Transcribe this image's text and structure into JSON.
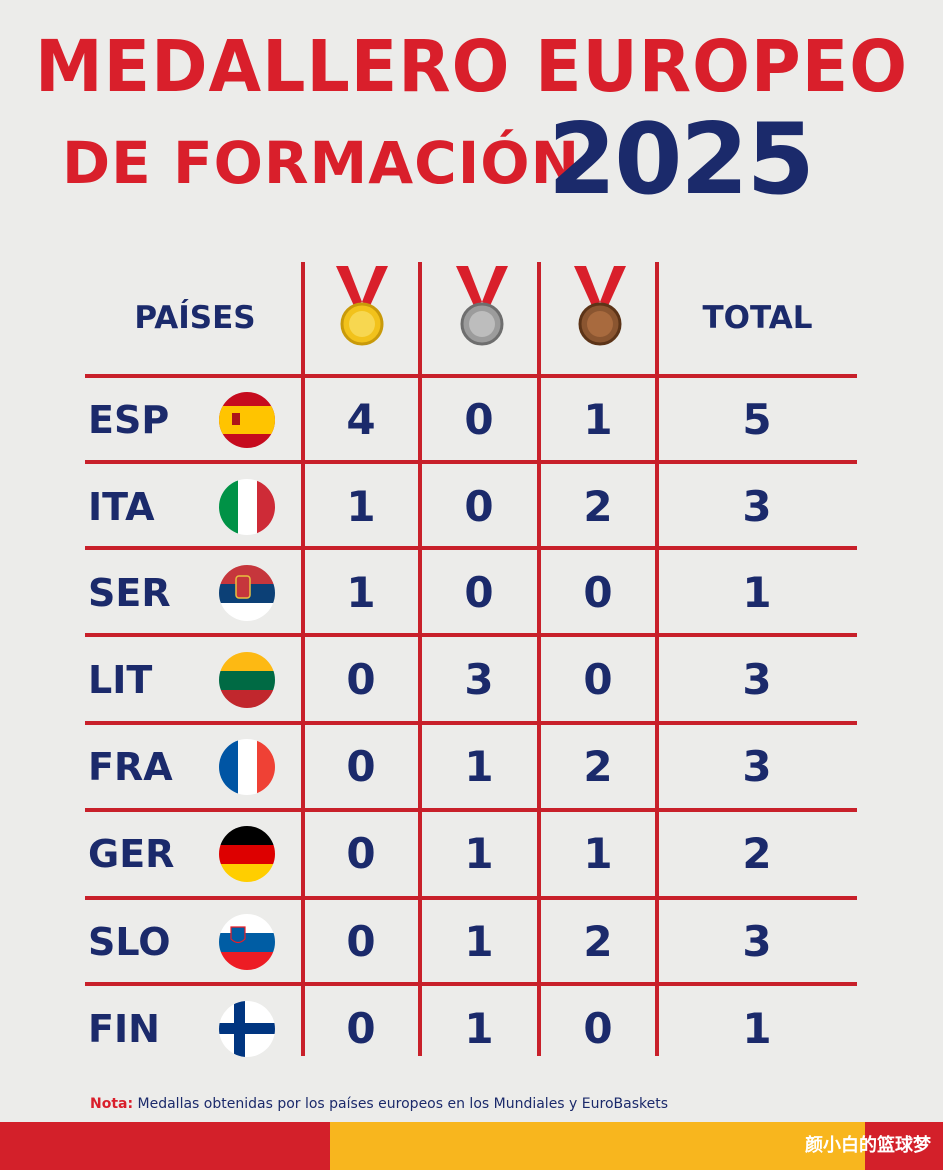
{
  "title": {
    "line1": "MEDALLERO EUROPEO",
    "line2": "DE FORMACIÓN",
    "year": "2025"
  },
  "header": {
    "countries": "PAÍSES",
    "gold_icon": "gold-medal-icon",
    "silver_icon": "silver-medal-icon",
    "bronze_icon": "bronze-medal-icon",
    "total": "TOTAL"
  },
  "rows": [
    {
      "code": "ESP",
      "flag": "spain-flag-icon",
      "gold": "4",
      "silver": "0",
      "bronze": "1",
      "total": "5"
    },
    {
      "code": "ITA",
      "flag": "italy-flag-icon",
      "gold": "1",
      "silver": "0",
      "bronze": "2",
      "total": "3"
    },
    {
      "code": "SER",
      "flag": "serbia-flag-icon",
      "gold": "1",
      "silver": "0",
      "bronze": "0",
      "total": "1"
    },
    {
      "code": "LIT",
      "flag": "lithuania-flag-icon",
      "gold": "0",
      "silver": "3",
      "bronze": "0",
      "total": "3"
    },
    {
      "code": "FRA",
      "flag": "france-flag-icon",
      "gold": "0",
      "silver": "1",
      "bronze": "2",
      "total": "3"
    },
    {
      "code": "GER",
      "flag": "germany-flag-icon",
      "gold": "0",
      "silver": "1",
      "bronze": "1",
      "total": "2"
    },
    {
      "code": "SLO",
      "flag": "slovenia-flag-icon",
      "gold": "0",
      "silver": "1",
      "bronze": "2",
      "total": "3"
    },
    {
      "code": "FIN",
      "flag": "finland-flag-icon",
      "gold": "0",
      "silver": "1",
      "bronze": "0",
      "total": "1"
    }
  ],
  "note": {
    "label": "Nota:",
    "text": " Medallas obtenidas por los países europeos en los Mundiales y EuroBaskets"
  },
  "watermark": "颜小白的篮球梦",
  "colors": {
    "red": "#d91f2b",
    "navy": "#1b2a6b",
    "yellow": "#f8b61e",
    "background": "#ececea"
  }
}
